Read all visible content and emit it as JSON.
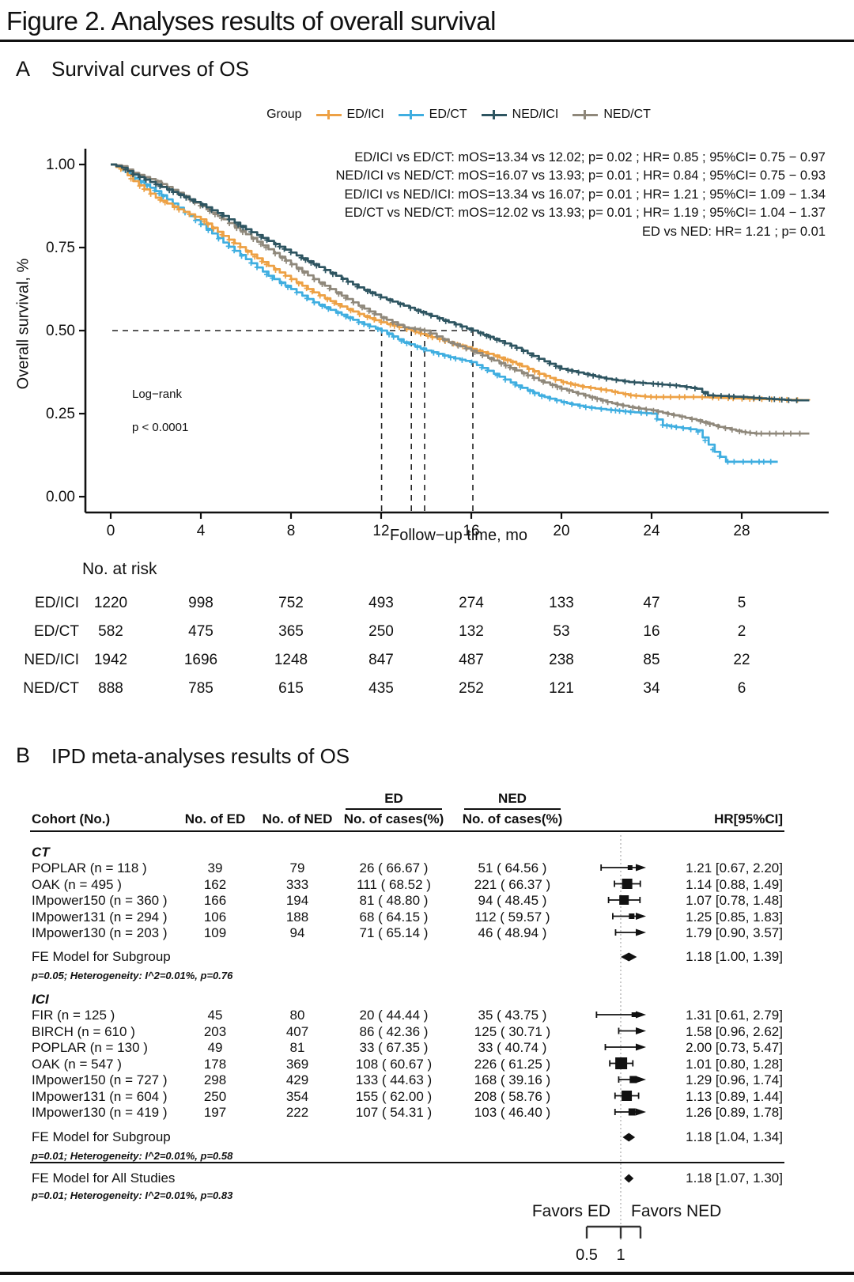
{
  "figure": {
    "title": "Figure 2. Analyses results of overall survival"
  },
  "panelA": {
    "label": "A",
    "heading": "Survival curves of OS"
  },
  "panelB": {
    "label": "B",
    "heading": "IPD meta-analyses results of OS",
    "header": {
      "cohort": "Cohort (No.)",
      "n_ed": "No. of ED",
      "n_ned": "No. of NED",
      "ed_group": "ED",
      "ned_group": "NED",
      "cases": "No. of cases(%)",
      "hr": "HR[95%CI]"
    }
  },
  "chart_data": [
    {
      "type": "line",
      "subtype": "kaplan-meier-step",
      "title": "Survival curves of OS",
      "xlabel": "Follow−up time, mo",
      "ylabel": "Overall survival, %",
      "xlim": [
        0,
        31.5
      ],
      "ylim": [
        0,
        1
      ],
      "xticks": [
        0,
        4,
        8,
        12,
        16,
        20,
        24,
        28
      ],
      "ytick_labels": [
        "1.00",
        "0.75",
        "0.50",
        "0.25",
        "0.00"
      ],
      "ytick_values": [
        1,
        0.75,
        0.5,
        0.25,
        0
      ],
      "grid": false,
      "legend_position": "top",
      "legend_title": "Group",
      "series": [
        {
          "name": "ED/ICI",
          "color": "#EDA145",
          "median_mOS": 13.34,
          "points": [
            [
              0,
              1.0
            ],
            [
              0.5,
              0.985
            ],
            [
              1,
              0.95
            ],
            [
              2,
              0.9
            ],
            [
              3,
              0.865
            ],
            [
              4,
              0.835
            ],
            [
              5,
              0.785
            ],
            [
              6,
              0.74
            ],
            [
              7,
              0.695
            ],
            [
              8,
              0.655
            ],
            [
              9,
              0.615
            ],
            [
              10,
              0.58
            ],
            [
              11,
              0.55
            ],
            [
              12,
              0.525
            ],
            [
              13.34,
              0.5
            ],
            [
              14,
              0.485
            ],
            [
              15,
              0.465
            ],
            [
              16,
              0.445
            ],
            [
              17,
              0.425
            ],
            [
              18,
              0.4
            ],
            [
              19,
              0.37
            ],
            [
              20,
              0.345
            ],
            [
              21,
              0.33
            ],
            [
              22,
              0.32
            ],
            [
              23,
              0.305
            ],
            [
              24,
              0.3
            ],
            [
              26,
              0.3
            ],
            [
              28,
              0.295
            ],
            [
              31,
              0.29
            ]
          ]
        },
        {
          "name": "ED/CT",
          "color": "#3FAEE0",
          "median_mOS": 12.02,
          "points": [
            [
              0,
              1.0
            ],
            [
              0.5,
              0.99
            ],
            [
              1,
              0.96
            ],
            [
              2,
              0.92
            ],
            [
              3,
              0.87
            ],
            [
              4,
              0.82
            ],
            [
              5,
              0.765
            ],
            [
              6,
              0.715
            ],
            [
              7,
              0.665
            ],
            [
              8,
              0.625
            ],
            [
              9,
              0.585
            ],
            [
              10,
              0.555
            ],
            [
              11,
              0.525
            ],
            [
              12.02,
              0.5
            ],
            [
              13,
              0.465
            ],
            [
              14,
              0.44
            ],
            [
              15,
              0.42
            ],
            [
              16,
              0.405
            ],
            [
              17,
              0.37
            ],
            [
              18,
              0.335
            ],
            [
              19,
              0.305
            ],
            [
              20,
              0.285
            ],
            [
              21,
              0.27
            ],
            [
              22,
              0.262
            ],
            [
              23,
              0.255
            ],
            [
              24,
              0.25
            ],
            [
              24.5,
              0.215
            ],
            [
              26,
              0.2
            ],
            [
              26.8,
              0.135
            ],
            [
              27.3,
              0.105
            ],
            [
              29.6,
              0.105
            ]
          ]
        },
        {
          "name": "NED/ICI",
          "color": "#2E5561",
          "median_mOS": 16.07,
          "points": [
            [
              0,
              1.0
            ],
            [
              0.5,
              0.99
            ],
            [
              1,
              0.97
            ],
            [
              2,
              0.94
            ],
            [
              3,
              0.91
            ],
            [
              4,
              0.88
            ],
            [
              5,
              0.845
            ],
            [
              6,
              0.805
            ],
            [
              7,
              0.77
            ],
            [
              8,
              0.735
            ],
            [
              9,
              0.7
            ],
            [
              10,
              0.665
            ],
            [
              11,
              0.63
            ],
            [
              12,
              0.6
            ],
            [
              13,
              0.575
            ],
            [
              14,
              0.55
            ],
            [
              15,
              0.525
            ],
            [
              16.07,
              0.5
            ],
            [
              17,
              0.475
            ],
            [
              18,
              0.448
            ],
            [
              19,
              0.415
            ],
            [
              20,
              0.385
            ],
            [
              21,
              0.37
            ],
            [
              22,
              0.355
            ],
            [
              23,
              0.345
            ],
            [
              24,
              0.34
            ],
            [
              25,
              0.335
            ],
            [
              26,
              0.325
            ],
            [
              26.5,
              0.305
            ],
            [
              28,
              0.3
            ],
            [
              30.2,
              0.29
            ],
            [
              31,
              0.29
            ]
          ]
        },
        {
          "name": "NED/CT",
          "color": "#8F887B",
          "median_mOS": 13.93,
          "points": [
            [
              0,
              1.0
            ],
            [
              0.5,
              0.995
            ],
            [
              1,
              0.975
            ],
            [
              2,
              0.95
            ],
            [
              3,
              0.915
            ],
            [
              4,
              0.875
            ],
            [
              5,
              0.835
            ],
            [
              6,
              0.79
            ],
            [
              7,
              0.745
            ],
            [
              8,
              0.7
            ],
            [
              9,
              0.655
            ],
            [
              10,
              0.615
            ],
            [
              11,
              0.575
            ],
            [
              12,
              0.54
            ],
            [
              13,
              0.51
            ],
            [
              13.93,
              0.5
            ],
            [
              15,
              0.465
            ],
            [
              16,
              0.44
            ],
            [
              17,
              0.41
            ],
            [
              18,
              0.38
            ],
            [
              19,
              0.35
            ],
            [
              20,
              0.325
            ],
            [
              21,
              0.305
            ],
            [
              22,
              0.285
            ],
            [
              23,
              0.27
            ],
            [
              24,
              0.26
            ],
            [
              25,
              0.245
            ],
            [
              26,
              0.23
            ],
            [
              27,
              0.21
            ],
            [
              28,
              0.195
            ],
            [
              28.6,
              0.19
            ],
            [
              31,
              0.19
            ]
          ]
        }
      ],
      "median_guides": {
        "y": 0.5,
        "x_values": [
          12.02,
          13.34,
          13.93,
          16.07
        ]
      },
      "annotations": [
        "ED/ICI vs ED/CT: mOS=13.34 vs 12.02; p= 0.02 ; HR= 0.85 ; 95%CI= 0.75 − 0.97",
        "NED/ICI vs NED/CT: mOS=16.07 vs 13.93; p= 0.01 ; HR= 0.84 ; 95%CI= 0.75 − 0.93",
        "ED/ICI vs NED/ICI: mOS=13.34 vs 16.07; p= 0.01 ; HR= 1.21 ; 95%CI= 1.09 − 1.34",
        "ED/CT vs NED/CT: mOS=12.02 vs 13.93; p= 0.01 ; HR= 1.19 ; 95%CI= 1.04 − 1.37",
        "ED vs NED: HR= 1.21 ; p= 0.01"
      ],
      "logrank": [
        "Log−rank",
        "p < 0.0001"
      ],
      "risk_table": {
        "title": "No. at risk",
        "times": [
          0,
          4,
          8,
          12,
          16,
          20,
          24,
          28
        ],
        "rows": [
          {
            "label": "ED/ICI",
            "counts": [
              1220,
              998,
              752,
              493,
              274,
              133,
              47,
              5
            ]
          },
          {
            "label": "ED/CT",
            "counts": [
              582,
              475,
              365,
              250,
              132,
              53,
              16,
              2
            ]
          },
          {
            "label": "NED/ICI",
            "counts": [
              1942,
              1696,
              1248,
              847,
              487,
              238,
              85,
              22
            ]
          },
          {
            "label": "NED/CT",
            "counts": [
              888,
              785,
              615,
              435,
              252,
              121,
              34,
              6
            ]
          }
        ]
      }
    },
    {
      "type": "table",
      "subtype": "forest-plot",
      "title": "IPD meta-analyses results of OS",
      "columns": [
        "Cohort (No.)",
        "No. of ED",
        "No. of NED",
        "ED No. of cases(%)",
        "NED No. of cases(%)",
        "HR[95%CI]"
      ],
      "axis": {
        "scale": "log",
        "ref": 1,
        "ticks": [
          0.5,
          1
        ],
        "tick_labels": [
          "0.5",
          "1"
        ]
      },
      "favors": [
        "Favors ED",
        "Favors NED"
      ],
      "groups": [
        {
          "name": "CT",
          "studies": [
            {
              "cohort": "POPLAR (n = 118 )",
              "n_ed": "39",
              "n_ned": "79",
              "ed_cases": "26 ( 66.67 )",
              "ned_cases": "51 ( 64.56 )",
              "hr": 1.21,
              "lo": 0.67,
              "hi": 2.2,
              "hr_text": "1.21 [0.67, 2.20]",
              "marker_size": 6
            },
            {
              "cohort": "OAK (n = 495 )",
              "n_ed": "162",
              "n_ned": "333",
              "ed_cases": "111 ( 68.52 )",
              "ned_cases": "221 ( 66.37 )",
              "hr": 1.14,
              "lo": 0.88,
              "hi": 1.49,
              "hr_text": "1.14 [0.88, 1.49]",
              "marker_size": 13
            },
            {
              "cohort": "IMpower150 (n = 360 )",
              "n_ed": "166",
              "n_ned": "194",
              "ed_cases": "81 ( 48.80 )",
              "ned_cases": "94 ( 48.45 )",
              "hr": 1.07,
              "lo": 0.78,
              "hi": 1.48,
              "hr_text": "1.07 [0.78, 1.48]",
              "marker_size": 12
            },
            {
              "cohort": "IMpower131 (n = 294 )",
              "n_ed": "106",
              "n_ned": "188",
              "ed_cases": "68 ( 64.15 )",
              "ned_cases": "112 ( 59.57 )",
              "hr": 1.25,
              "lo": 0.85,
              "hi": 1.83,
              "hr_text": "1.25 [0.85, 1.83]",
              "marker_size": 7
            },
            {
              "cohort": "IMpower130 (n = 203 )",
              "n_ed": "109",
              "n_ned": "94",
              "ed_cases": "71 ( 65.14 )",
              "ned_cases": "46 ( 48.94 )",
              "hr": 1.79,
              "lo": 0.9,
              "hi": 3.57,
              "hr_text": "1.79 [0.90, 3.57]",
              "marker_size": 0
            }
          ],
          "fe_model": {
            "label": "FE Model for Subgroup",
            "hr": 1.18,
            "lo": 1.0,
            "hi": 1.39,
            "hr_text": "1.18 [1.00, 1.39]",
            "note": "p=0.05; Heterogeneity: I^2=0.01%, p=0.76"
          }
        },
        {
          "name": "ICI",
          "studies": [
            {
              "cohort": "FIR (n = 125 )",
              "n_ed": "45",
              "n_ned": "80",
              "ed_cases": "20 ( 44.44 )",
              "ned_cases": "35 ( 43.75 )",
              "hr": 1.31,
              "lo": 0.61,
              "hi": 2.79,
              "hr_text": "1.31 [0.61, 2.79]",
              "marker_size": 6
            },
            {
              "cohort": "BIRCH (n = 610 )",
              "n_ed": "203",
              "n_ned": "407",
              "ed_cases": "86 ( 42.36 )",
              "ned_cases": "125 ( 30.71 )",
              "hr": 1.58,
              "lo": 0.96,
              "hi": 2.62,
              "hr_text": "1.58 [0.96, 2.62]",
              "marker_size": 0
            },
            {
              "cohort": "POPLAR (n = 130 )",
              "n_ed": "49",
              "n_ned": "81",
              "ed_cases": "33 ( 67.35 )",
              "ned_cases": "33 ( 40.74 )",
              "hr": 2.0,
              "lo": 0.73,
              "hi": 5.47,
              "hr_text": "2.00 [0.73, 5.47]",
              "marker_size": 0
            },
            {
              "cohort": "OAK (n = 547 )",
              "n_ed": "178",
              "n_ned": "369",
              "ed_cases": "108 ( 60.67 )",
              "ned_cases": "226 ( 61.25 )",
              "hr": 1.01,
              "lo": 0.8,
              "hi": 1.28,
              "hr_text": "1.01 [0.80, 1.28]",
              "marker_size": 15
            },
            {
              "cohort": "IMpower150 (n = 727 )",
              "n_ed": "298",
              "n_ned": "429",
              "ed_cases": "133 ( 44.63 )",
              "ned_cases": "168 ( 39.16 )",
              "hr": 1.29,
              "lo": 0.96,
              "hi": 1.74,
              "hr_text": "1.29 [0.96, 1.74]",
              "marker_size": 9
            },
            {
              "cohort": "IMpower131 (n = 604 )",
              "n_ed": "250",
              "n_ned": "354",
              "ed_cases": "155 ( 62.00 )",
              "ned_cases": "208 ( 58.76 )",
              "hr": 1.13,
              "lo": 0.89,
              "hi": 1.44,
              "hr_text": "1.13 [0.89, 1.44]",
              "marker_size": 13
            },
            {
              "cohort": "IMpower130 (n = 419 )",
              "n_ed": "197",
              "n_ned": "222",
              "ed_cases": "107 ( 54.31 )",
              "ned_cases": "103 ( 46.40 )",
              "hr": 1.26,
              "lo": 0.89,
              "hi": 1.78,
              "hr_text": "1.26 [0.89, 1.78]",
              "marker_size": 9
            }
          ],
          "fe_model": {
            "label": "FE Model for Subgroup",
            "hr": 1.18,
            "lo": 1.04,
            "hi": 1.34,
            "hr_text": "1.18 [1.04, 1.34]",
            "note": "p=0.01; Heterogeneity: I^2=0.01%, p=0.58"
          }
        }
      ],
      "overall": {
        "label": "FE Model for All Studies",
        "hr": 1.18,
        "lo": 1.07,
        "hi": 1.3,
        "hr_text": "1.18 [1.07, 1.30]",
        "note": "p=0.01; Heterogeneity: I^2=0.01%, p=0.83"
      }
    }
  ]
}
